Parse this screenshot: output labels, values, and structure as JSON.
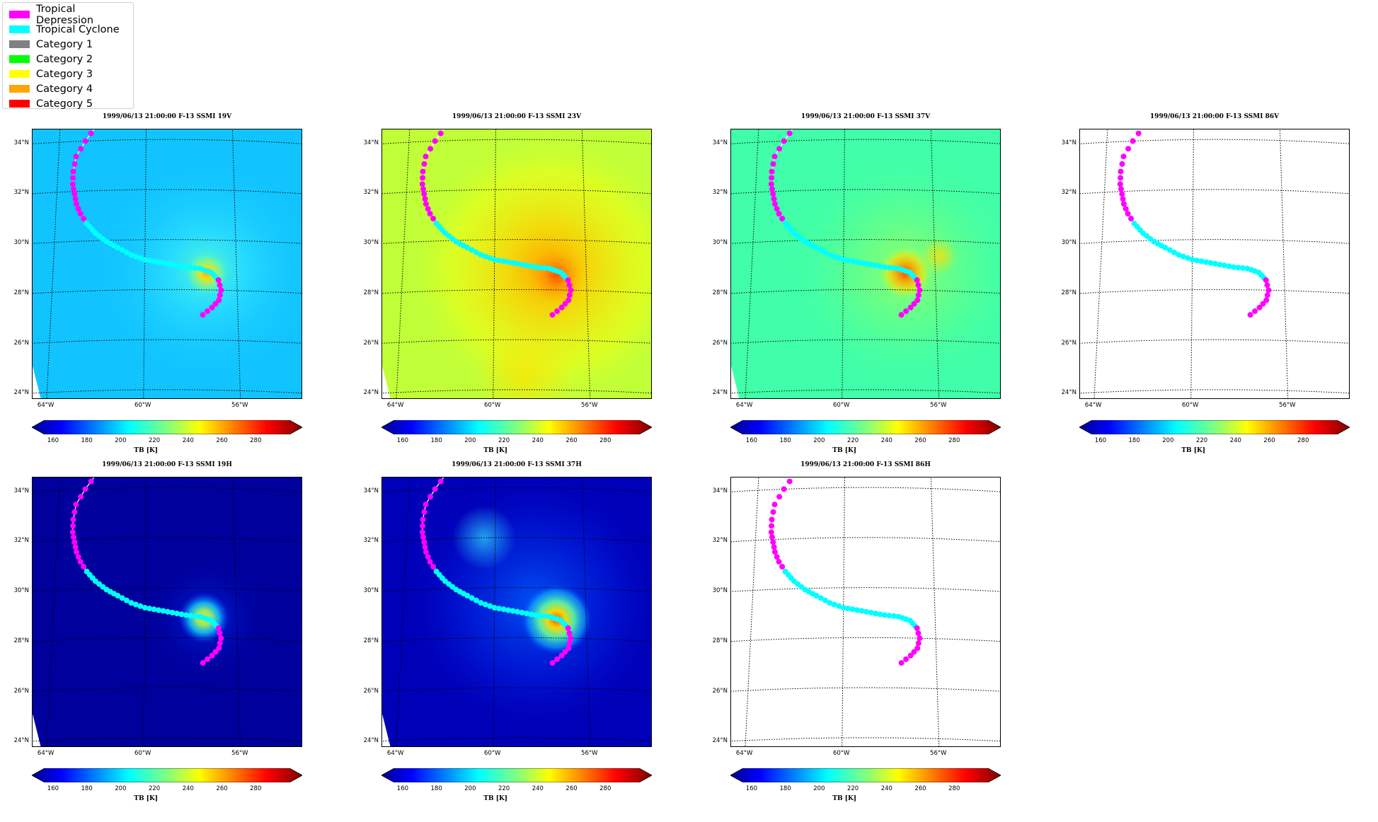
{
  "legend": {
    "items": [
      {
        "label": "Tropical Depression",
        "color": "#ff00ff"
      },
      {
        "label": "Tropical Cyclone",
        "color": "#00ffff"
      },
      {
        "label": "Category 1",
        "color": "#808080"
      },
      {
        "label": "Category 2",
        "color": "#00ff00"
      },
      {
        "label": "Category 3",
        "color": "#ffff00"
      },
      {
        "label": "Category 4",
        "color": "#ffa500"
      },
      {
        "label": "Category 5",
        "color": "#ff0000"
      }
    ]
  },
  "lat_labels": [
    "34°N",
    "32°N",
    "30°N",
    "28°N",
    "26°N",
    "24°N"
  ],
  "lon_labels": [
    "64°W",
    "60°W",
    "56°W"
  ],
  "colorbar": {
    "ticks": [
      "160",
      "180",
      "200",
      "220",
      "240",
      "260",
      "280"
    ],
    "label": "TB [K]",
    "colormap": "jet",
    "extend": "both"
  },
  "panels": [
    {
      "title": "1999/06/13 21:00:00  F-13 SSMI 19V",
      "style": "v19",
      "base_color": "#11c8ff"
    },
    {
      "title": "1999/06/13 21:00:00  F-13 SSMI 23V",
      "style": "v23",
      "base_color": "#c8ff30"
    },
    {
      "title": "1999/06/13 21:00:00  F-13 SSMI 37V",
      "style": "v37",
      "base_color": "#40ffa0"
    },
    {
      "title": "1999/06/13 21:00:00  F-13 SSMI 86V",
      "style": "blank",
      "base_color": "#ffffff"
    },
    {
      "title": "1999/06/13 21:00:00  F-13 SSMI 19H",
      "style": "h19",
      "base_color": "#00009a"
    },
    {
      "title": "1999/06/13 21:00:00  F-13 SSMI 37H",
      "style": "h37",
      "base_color": "#0000b8"
    },
    {
      "title": "1999/06/13 21:00:00  F-13 SSMI 86H",
      "style": "blank",
      "base_color": "#ffffff"
    }
  ],
  "track": {
    "points": [
      [
        -62.3,
        34.6
      ],
      [
        -62.8,
        34.0
      ],
      [
        -63.2,
        33.4
      ],
      [
        -63.3,
        32.8
      ],
      [
        -63.3,
        32.3
      ],
      [
        -63.2,
        31.9
      ],
      [
        -63.1,
        31.5
      ],
      [
        -62.9,
        31.1
      ],
      [
        -62.6,
        30.7
      ],
      [
        -62.2,
        30.3
      ],
      [
        -61.7,
        29.95
      ],
      [
        -61.2,
        29.7
      ],
      [
        -60.6,
        29.4
      ],
      [
        -60.0,
        29.2
      ],
      [
        -59.4,
        29.1
      ],
      [
        -58.8,
        29.0
      ],
      [
        -58.2,
        28.9
      ],
      [
        -57.6,
        28.85
      ],
      [
        -57.1,
        28.7
      ],
      [
        -56.8,
        28.4
      ],
      [
        -56.7,
        28.0
      ],
      [
        -56.8,
        27.6
      ],
      [
        -57.1,
        27.3
      ],
      [
        -57.5,
        27.0
      ]
    ],
    "tropical_cyclone_segment": [
      8,
      19
    ]
  }
}
